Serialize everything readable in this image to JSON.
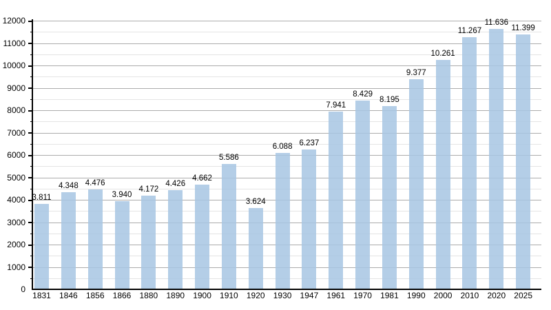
{
  "chart_data": {
    "type": "bar",
    "title": "",
    "xlabel": "",
    "ylabel": "",
    "categories": [
      "1831",
      "1846",
      "1856",
      "1866",
      "1880",
      "1890",
      "1900",
      "1910",
      "1920",
      "1930",
      "1947",
      "1961",
      "1970",
      "1981",
      "1990",
      "2000",
      "2010",
      "2020",
      "2025"
    ],
    "values": [
      3811,
      4348,
      4476,
      3940,
      4172,
      4426,
      4662,
      5586,
      3624,
      6088,
      6237,
      7941,
      8429,
      8195,
      9377,
      10261,
      11267,
      11636,
      11399
    ],
    "bar_labels": [
      "3.811",
      "4.348",
      "4.476",
      "3.940",
      "4.172",
      "4.426",
      "4.662",
      "5.586",
      "3.624",
      "6.088",
      "6.237",
      "7.941",
      "8.429",
      "8.195",
      "9.377",
      "10.261",
      "11.267",
      "11.636",
      "11.399"
    ],
    "ylim": [
      0,
      12000
    ],
    "y_major_step": 1000,
    "y_minor_step": 500,
    "y_tick_labels": [
      "0",
      "1000",
      "2000",
      "3000",
      "4000",
      "5000",
      "6000",
      "7000",
      "8000",
      "9000",
      "10000",
      "11000",
      "12000"
    ],
    "grid": "on",
    "legend": "none",
    "colors": {
      "bar_fill": "rgba(167,198,227,0.85)",
      "major_grid": "#ababab",
      "minor_grid": "#e4e4e4",
      "axis": "#000000",
      "text": "#000000",
      "background": "#ffffff"
    }
  }
}
